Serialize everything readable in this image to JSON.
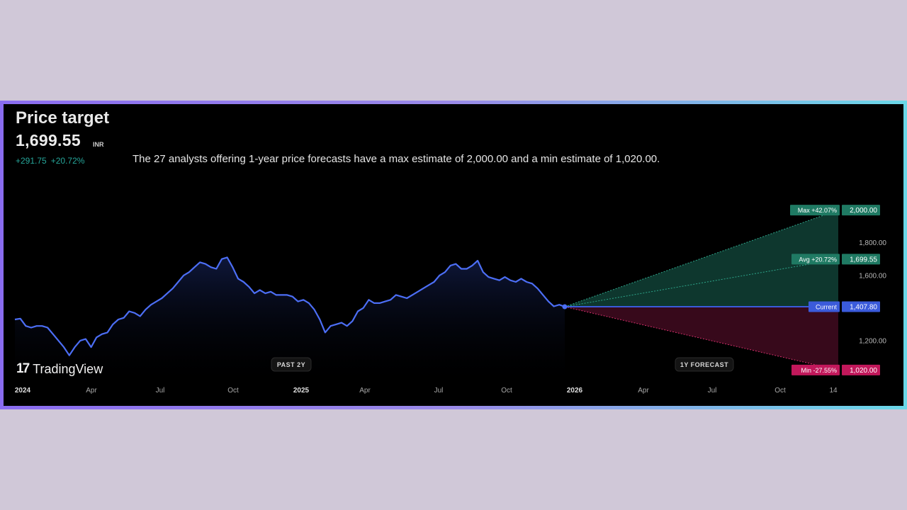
{
  "header": {
    "title": "Price target",
    "price": "1,699.55",
    "currency": "INR",
    "change_abs": "+291.75",
    "change_pct": "+20.72%",
    "description": "The 27 analysts offering 1-year price forecasts have a max estimate of 2,000.00 and a min estimate of 1,020.00."
  },
  "brand": {
    "logo_mark": "17",
    "name": "TradingView"
  },
  "colors": {
    "page_bg": "#d0c8d8",
    "card_bg": "#000000",
    "line": "#4c6ef5",
    "positive": "#1f7a63",
    "negative": "#c2185b",
    "current": "#3b5bdb",
    "max_fill": "#0f3d33",
    "min_fill": "#3a0a1c"
  },
  "chart_data": {
    "type": "line",
    "x_ticks": [
      "2024",
      "Apr",
      "Jul",
      "Oct",
      "2025",
      "Apr",
      "Jul",
      "Oct",
      "2026",
      "Apr",
      "Jul",
      "Oct",
      "14"
    ],
    "y_ticks": [
      "1,200.00",
      "1,600.00",
      "1,800.00"
    ],
    "ylim": [
      1000,
      2020
    ],
    "section_labels": {
      "past": "PAST 2Y",
      "forecast": "1Y FORECAST"
    },
    "history": [
      1330,
      1335,
      1290,
      1280,
      1290,
      1290,
      1280,
      1240,
      1200,
      1160,
      1110,
      1160,
      1200,
      1210,
      1160,
      1220,
      1240,
      1250,
      1300,
      1330,
      1340,
      1380,
      1370,
      1350,
      1390,
      1420,
      1440,
      1460,
      1490,
      1520,
      1560,
      1600,
      1620,
      1650,
      1680,
      1670,
      1650,
      1640,
      1700,
      1710,
      1650,
      1580,
      1560,
      1530,
      1490,
      1510,
      1490,
      1500,
      1480,
      1480,
      1480,
      1470,
      1440,
      1450,
      1430,
      1390,
      1330,
      1250,
      1290,
      1300,
      1310,
      1290,
      1320,
      1380,
      1400,
      1450,
      1430,
      1430,
      1440,
      1450,
      1480,
      1470,
      1460,
      1480,
      1500,
      1520,
      1540,
      1560,
      1600,
      1620,
      1660,
      1670,
      1640,
      1640,
      1660,
      1690,
      1620,
      1590,
      1580,
      1570,
      1590,
      1570,
      1560,
      1580,
      1560,
      1550,
      1520,
      1480,
      1440,
      1410,
      1420,
      1407.8
    ],
    "forecast": {
      "current": {
        "label": "Current",
        "value": 1407.8,
        "value_label": "1,407.80"
      },
      "max": {
        "label": "Max +42.07%",
        "value": 2000.0,
        "value_label": "2,000.00"
      },
      "avg": {
        "label": "Avg +20.72%",
        "value": 1699.55,
        "value_label": "1,699.55"
      },
      "min": {
        "label": "Min -27.55%",
        "value": 1020.0,
        "value_label": "1,020.00"
      }
    }
  }
}
